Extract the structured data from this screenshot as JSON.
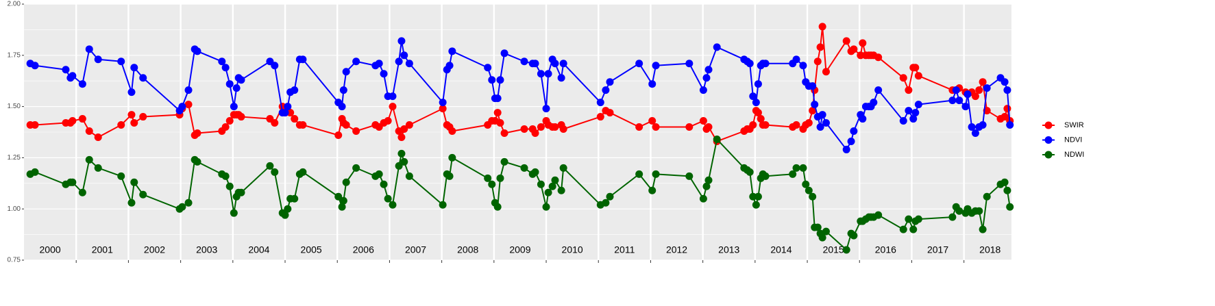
{
  "chart_data": {
    "type": "line",
    "x": [
      2000.12,
      2000.21,
      2000.8,
      2000.89,
      2000.93,
      2001.12,
      2001.25,
      2001.42,
      2001.86,
      2002.06,
      2002.11,
      2002.28,
      2002.98,
      2003.03,
      2003.15,
      2003.27,
      2003.32,
      2003.79,
      2003.86,
      2003.94,
      2004.02,
      2004.07,
      2004.11,
      2004.16,
      2004.71,
      2004.8,
      2004.95,
      2005.0,
      2005.05,
      2005.1,
      2005.18,
      2005.28,
      2005.34,
      2006.02,
      2006.09,
      2006.12,
      2006.17,
      2006.36,
      2006.73,
      2006.8,
      2006.89,
      2006.97,
      2007.06,
      2007.18,
      2007.23,
      2007.28,
      2007.38,
      2008.02,
      2008.1,
      2008.15,
      2008.2,
      2008.88,
      2008.96,
      2009.02,
      2009.07,
      2009.12,
      2009.2,
      2009.58,
      2009.74,
      2009.79,
      2009.9,
      2010.0,
      2010.04,
      2010.12,
      2010.17,
      2010.29,
      2010.33,
      2011.04,
      2011.14,
      2011.22,
      2011.78,
      2012.03,
      2012.1,
      2012.74,
      2013.01,
      2013.07,
      2013.11,
      2013.27,
      2013.79,
      2013.85,
      2013.9,
      2013.96,
      2014.02,
      2014.06,
      2014.11,
      2014.15,
      2014.2,
      2014.72,
      2014.79,
      2014.92,
      2014.97,
      2015.03,
      2015.1,
      2015.14,
      2015.2,
      2015.25,
      2015.29,
      2015.36,
      2015.75,
      2015.84,
      2015.89,
      2016.02,
      2016.06,
      2016.12,
      2016.18,
      2016.22,
      2016.27,
      2016.36,
      2016.84,
      2016.94,
      2017.03,
      2017.07,
      2017.13,
      2017.78,
      2017.85,
      2017.91,
      2018.03,
      2018.07,
      2018.15,
      2018.22,
      2018.29,
      2018.36,
      2018.44,
      2018.7,
      2018.78,
      2018.83,
      2018.88
    ],
    "series": [
      {
        "name": "SWIR",
        "color": "#ff0000",
        "values": [
          1.41,
          1.41,
          1.42,
          1.42,
          1.43,
          1.44,
          1.38,
          1.35,
          1.41,
          1.46,
          1.42,
          1.45,
          1.46,
          1.49,
          1.51,
          1.36,
          1.37,
          1.38,
          1.4,
          1.43,
          1.46,
          1.46,
          1.46,
          1.45,
          1.44,
          1.42,
          1.5,
          1.47,
          1.48,
          1.47,
          1.44,
          1.41,
          1.41,
          1.36,
          1.44,
          1.42,
          1.41,
          1.38,
          1.41,
          1.4,
          1.42,
          1.43,
          1.5,
          1.38,
          1.35,
          1.39,
          1.41,
          1.49,
          1.41,
          1.4,
          1.38,
          1.41,
          1.43,
          1.43,
          1.47,
          1.42,
          1.37,
          1.39,
          1.39,
          1.37,
          1.4,
          1.43,
          1.41,
          1.4,
          1.4,
          1.41,
          1.39,
          1.45,
          1.48,
          1.47,
          1.4,
          1.43,
          1.4,
          1.4,
          1.43,
          1.39,
          1.4,
          1.33,
          1.38,
          1.39,
          1.39,
          1.41,
          1.48,
          1.47,
          1.44,
          1.41,
          1.41,
          1.4,
          1.41,
          1.39,
          1.41,
          1.42,
          1.48,
          1.58,
          1.72,
          1.79,
          1.89,
          1.67,
          1.82,
          1.77,
          1.78,
          1.75,
          1.81,
          1.75,
          1.75,
          1.75,
          1.75,
          1.74,
          1.64,
          1.58,
          1.69,
          1.69,
          1.65,
          1.58,
          1.58,
          1.59,
          1.57,
          1.56,
          1.57,
          1.55,
          1.58,
          1.62,
          1.48,
          1.44,
          1.45,
          1.49,
          1.43
        ]
      },
      {
        "name": "NDVI",
        "color": "#0000ff",
        "values": [
          1.71,
          1.7,
          1.68,
          1.64,
          1.65,
          1.61,
          1.78,
          1.73,
          1.72,
          1.57,
          1.69,
          1.64,
          1.48,
          1.5,
          1.58,
          1.78,
          1.77,
          1.72,
          1.69,
          1.61,
          1.5,
          1.59,
          1.64,
          1.63,
          1.72,
          1.7,
          1.47,
          1.47,
          1.5,
          1.57,
          1.58,
          1.73,
          1.73,
          1.52,
          1.5,
          1.58,
          1.67,
          1.72,
          1.7,
          1.71,
          1.66,
          1.55,
          1.55,
          1.72,
          1.82,
          1.75,
          1.71,
          1.52,
          1.68,
          1.7,
          1.77,
          1.69,
          1.63,
          1.54,
          1.54,
          1.63,
          1.76,
          1.72,
          1.71,
          1.71,
          1.66,
          1.49,
          1.66,
          1.73,
          1.71,
          1.64,
          1.71,
          1.52,
          1.58,
          1.62,
          1.71,
          1.61,
          1.7,
          1.71,
          1.58,
          1.64,
          1.68,
          1.79,
          1.73,
          1.72,
          1.71,
          1.55,
          1.52,
          1.61,
          1.7,
          1.71,
          1.71,
          1.71,
          1.73,
          1.7,
          1.62,
          1.6,
          1.6,
          1.51,
          1.45,
          1.4,
          1.46,
          1.42,
          1.29,
          1.33,
          1.38,
          1.46,
          1.44,
          1.5,
          1.5,
          1.5,
          1.52,
          1.58,
          1.43,
          1.48,
          1.44,
          1.47,
          1.51,
          1.53,
          1.58,
          1.53,
          1.5,
          1.56,
          1.4,
          1.37,
          1.4,
          1.41,
          1.59,
          1.64,
          1.62,
          1.58,
          1.41
        ]
      },
      {
        "name": "NDWI",
        "color": "#006400",
        "values": [
          1.17,
          1.18,
          1.12,
          1.13,
          1.13,
          1.08,
          1.24,
          1.2,
          1.16,
          1.03,
          1.13,
          1.07,
          1.0,
          1.01,
          1.03,
          1.24,
          1.23,
          1.17,
          1.16,
          1.11,
          0.98,
          1.06,
          1.08,
          1.08,
          1.21,
          1.18,
          0.98,
          0.97,
          1.0,
          1.05,
          1.05,
          1.17,
          1.18,
          1.06,
          1.01,
          1.04,
          1.13,
          1.2,
          1.16,
          1.17,
          1.12,
          1.05,
          1.02,
          1.21,
          1.27,
          1.23,
          1.16,
          1.02,
          1.17,
          1.16,
          1.25,
          1.15,
          1.12,
          1.03,
          1.01,
          1.15,
          1.23,
          1.2,
          1.17,
          1.18,
          1.12,
          1.01,
          1.08,
          1.11,
          1.14,
          1.09,
          1.2,
          1.02,
          1.03,
          1.06,
          1.17,
          1.09,
          1.17,
          1.16,
          1.05,
          1.11,
          1.14,
          1.34,
          1.2,
          1.19,
          1.18,
          1.06,
          1.02,
          1.06,
          1.15,
          1.17,
          1.16,
          1.17,
          1.2,
          1.2,
          1.12,
          1.09,
          1.06,
          0.91,
          0.91,
          0.88,
          0.86,
          0.89,
          0.8,
          0.88,
          0.87,
          0.94,
          0.94,
          0.95,
          0.96,
          0.96,
          0.96,
          0.97,
          0.9,
          0.95,
          0.9,
          0.94,
          0.95,
          0.96,
          1.01,
          0.99,
          0.98,
          1.0,
          0.98,
          0.99,
          0.99,
          0.9,
          1.06,
          1.12,
          1.13,
          1.09,
          1.01
        ]
      }
    ],
    "xlim": [
      2000,
      2018.91
    ],
    "xticks": [
      2001,
      2002,
      2003,
      2004,
      2005,
      2006,
      2007,
      2008,
      2009,
      2010,
      2011,
      2012,
      2013,
      2014,
      2015,
      2016,
      2017,
      2018
    ],
    "year_labels": [
      "2000",
      "2001",
      "2002",
      "2003",
      "2004",
      "2005",
      "2006",
      "2007",
      "2008",
      "2009",
      "2010",
      "2011",
      "2012",
      "2013",
      "2014",
      "2015",
      "2016",
      "2017",
      "2018"
    ],
    "ylim": [
      0.75,
      2.0
    ],
    "yticks": [
      {
        "value": 0.75,
        "label": "0.75"
      },
      {
        "value": 1.0,
        "label": "1.00"
      },
      {
        "value": 1.25,
        "label": "1.25"
      },
      {
        "value": 1.5,
        "label": "1.50"
      },
      {
        "value": 1.75,
        "label": "1.75"
      },
      {
        "value": 2.0,
        "label": "2.00"
      }
    ],
    "yticks_minor": [
      0.875,
      1.125,
      1.375,
      1.625,
      1.875
    ],
    "grid": true,
    "legend": "right"
  }
}
